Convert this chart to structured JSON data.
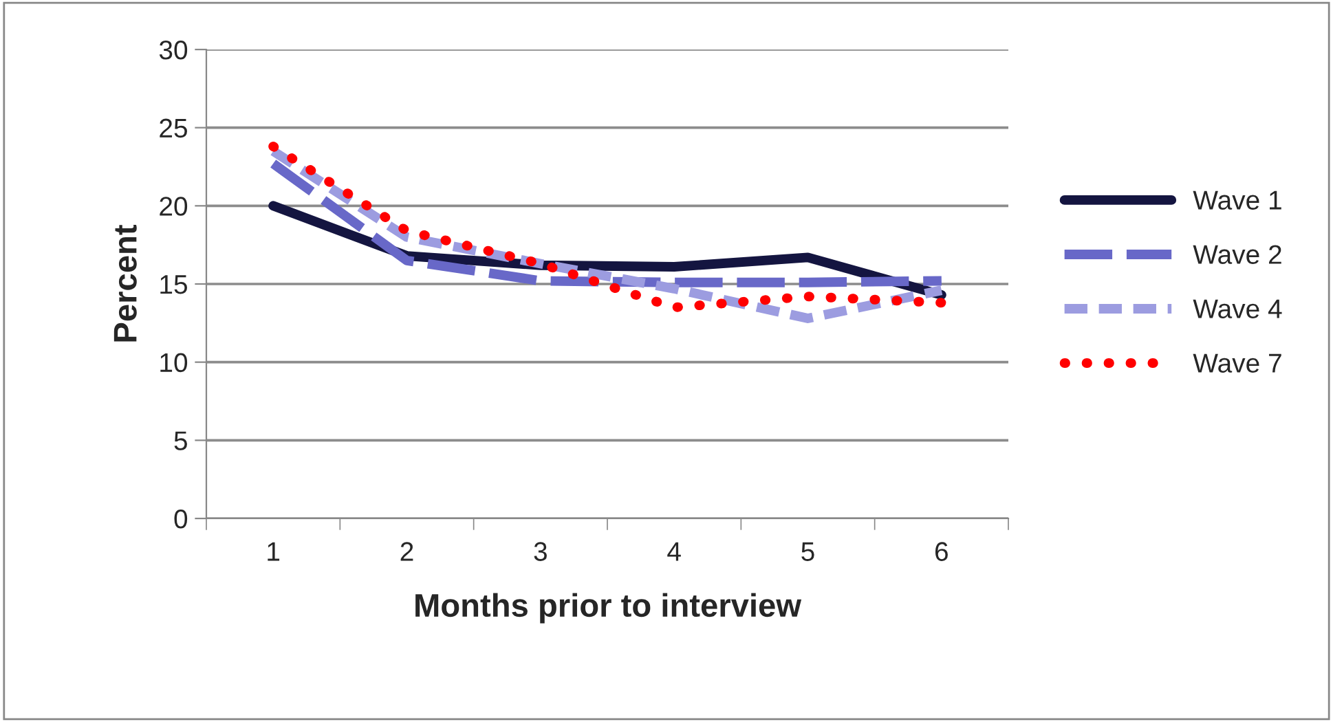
{
  "chart_data": {
    "type": "line",
    "xlabel": "Months prior to interview",
    "ylabel": "Percent",
    "categories": [
      "1",
      "2",
      "3",
      "4",
      "5",
      "6"
    ],
    "series": [
      {
        "name": "Wave 1",
        "color": "#141540",
        "line_style": "solid",
        "values": [
          20.0,
          16.8,
          16.2,
          16.1,
          16.7,
          14.3
        ]
      },
      {
        "name": "Wave 2",
        "color": "#6868c8",
        "line_style": "dashed",
        "values": [
          22.7,
          16.5,
          15.2,
          15.1,
          15.1,
          15.2
        ]
      },
      {
        "name": "Wave 4",
        "color": "#9c9ce0",
        "line_style": "dashed",
        "values": [
          23.5,
          18.0,
          16.3,
          14.7,
          12.8,
          14.6
        ]
      },
      {
        "name": "Wave 7",
        "color": "#ff0000",
        "line_style": "dotted",
        "values": [
          23.8,
          18.4,
          16.3,
          13.5,
          14.2,
          13.8
        ]
      }
    ],
    "ylim": [
      0,
      30
    ],
    "yticks": [
      0,
      5,
      10,
      15,
      20,
      25,
      30
    ],
    "grid": "y",
    "legend": "right",
    "marker": "none"
  }
}
